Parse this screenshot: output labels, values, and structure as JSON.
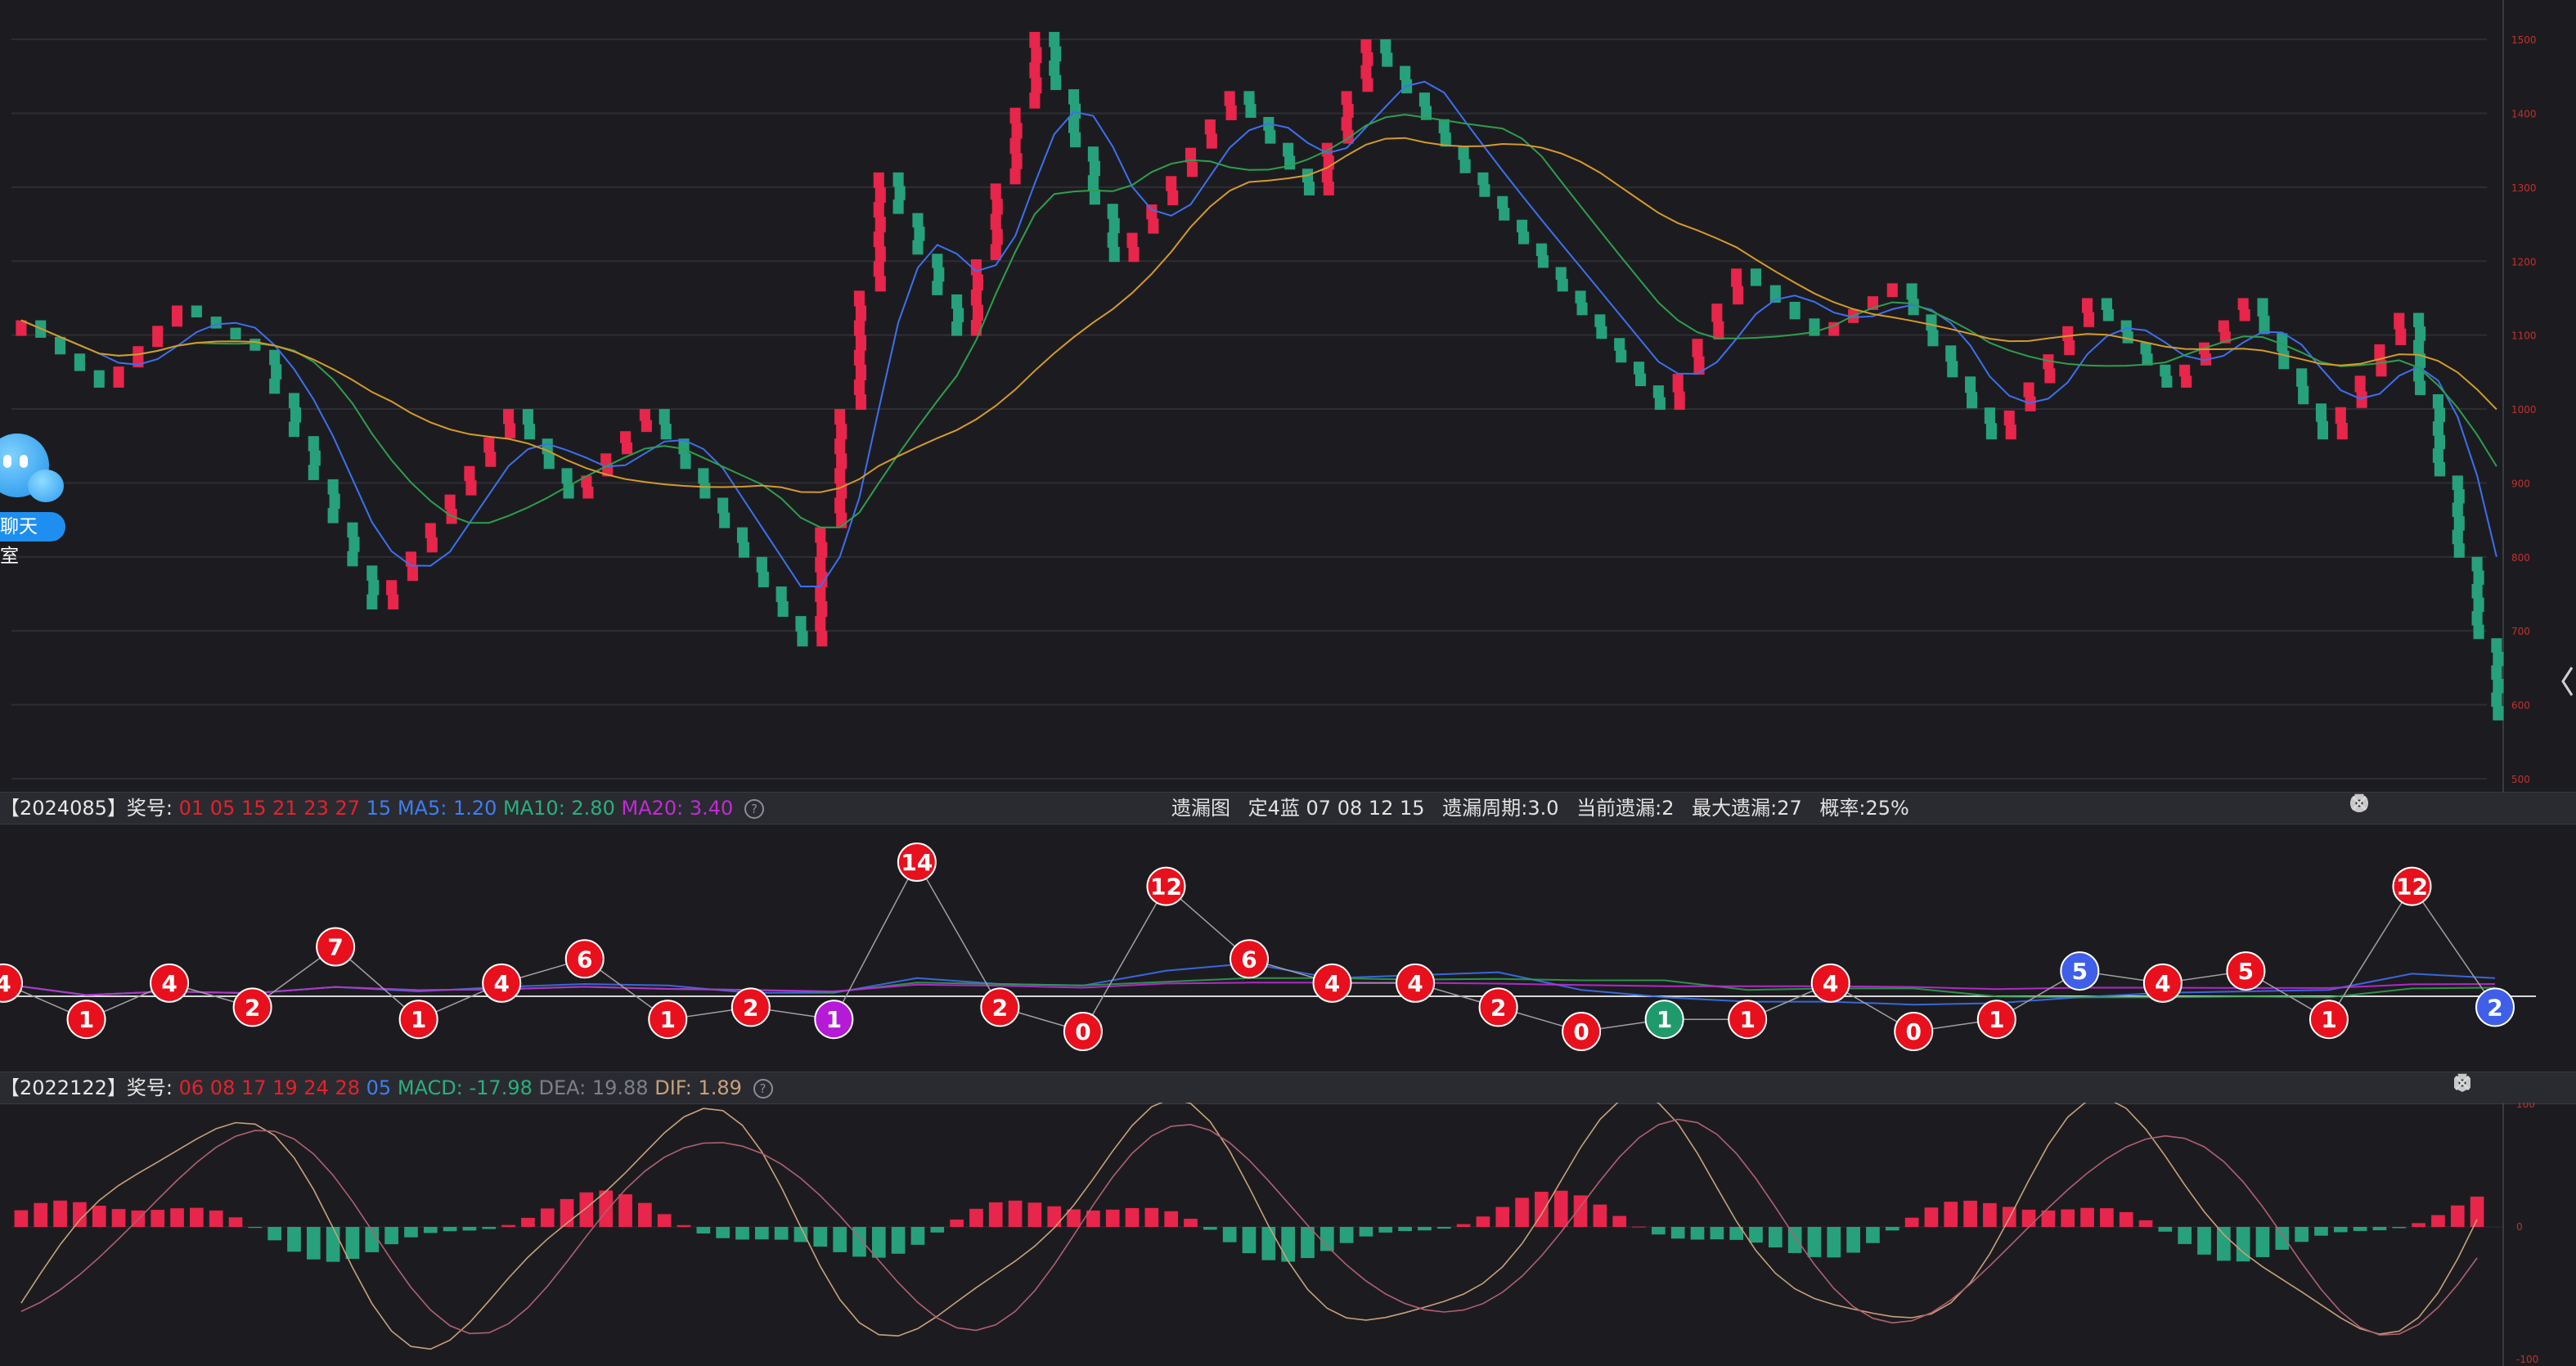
{
  "colors": {
    "up": "#e8254a",
    "down": "#26a17b",
    "ma5": "#3d6ff0",
    "ma10": "#2e9e4e",
    "ma20": "#d49a2a",
    "grid": "#2d2e34",
    "axis_text": "#c0302f"
  },
  "main_axis": {
    "labels": [
      "1500",
      "1400",
      "1300",
      "1200",
      "1100",
      "1000",
      "900",
      "800",
      "700",
      "600",
      "500"
    ]
  },
  "bar1": {
    "issue": "【2024085】奖号:",
    "reds": "01 05 15 21 23 27",
    "blue": "15",
    "ma5": "MA5: 1.20",
    "ma10": "MA10: 2.80",
    "ma20": "MA20: 3.40",
    "help": "?",
    "center": {
      "title": "遗漏图",
      "config": "定4蓝  07 08 12 15",
      "period": "遗漏周期:3.0",
      "current": "当前遗漏:2",
      "max": "最大遗漏:27",
      "prob": "概率:25%"
    }
  },
  "bar2": {
    "issue": "【2022122】奖号:",
    "reds": "06 08 17 19 24 28",
    "blue": "05",
    "macd": "MACD: -17.98",
    "dea": "DEA: 19.88",
    "dif": "DIF: 1.89",
    "help": "?"
  },
  "macd_axis": {
    "top": "100",
    "mid": "0",
    "bottom": "-100"
  },
  "chat": {
    "label": "聊天室"
  },
  "chart_data": [
    {
      "type": "renko",
      "title": "",
      "y_range": [
        500,
        1520
      ],
      "brick_size": 20,
      "x_count": 127,
      "series": [
        {
          "name": "MA5",
          "color": "#3d6ff0"
        },
        {
          "name": "MA10",
          "color": "#2e9e4e"
        },
        {
          "name": "MA20",
          "color": "#d49a2a"
        }
      ],
      "pivots": [
        [
          0,
          1120
        ],
        [
          4,
          1030
        ],
        [
          8,
          1140
        ],
        [
          12,
          1080
        ],
        [
          18,
          730
        ],
        [
          25,
          1000
        ],
        [
          28,
          880
        ],
        [
          32,
          1000
        ],
        [
          35,
          880
        ],
        [
          40,
          680
        ],
        [
          44,
          1320
        ],
        [
          48,
          1100
        ],
        [
          52,
          1510
        ],
        [
          56,
          1200
        ],
        [
          62,
          1430
        ],
        [
          66,
          1290
        ],
        [
          69,
          1500
        ],
        [
          74,
          1320
        ],
        [
          79,
          1160
        ],
        [
          84,
          1000
        ],
        [
          88,
          1190
        ],
        [
          92,
          1100
        ],
        [
          96,
          1170
        ],
        [
          101,
          960
        ],
        [
          106,
          1150
        ],
        [
          110,
          1030
        ],
        [
          114,
          1150
        ],
        [
          118,
          960
        ],
        [
          122,
          1130
        ],
        [
          127,
          580
        ]
      ]
    },
    {
      "type": "line",
      "title": "遗漏图",
      "y_range": [
        0,
        14
      ],
      "points": [
        {
          "v": 4,
          "c": "red"
        },
        {
          "v": 1,
          "c": "red"
        },
        {
          "v": 4,
          "c": "red"
        },
        {
          "v": 2,
          "c": "red"
        },
        {
          "v": 7,
          "c": "red"
        },
        {
          "v": 1,
          "c": "red"
        },
        {
          "v": 4,
          "c": "red"
        },
        {
          "v": 6,
          "c": "red"
        },
        {
          "v": 1,
          "c": "red"
        },
        {
          "v": 2,
          "c": "red"
        },
        {
          "v": 1,
          "c": "purple"
        },
        {
          "v": 14,
          "c": "red"
        },
        {
          "v": 2,
          "c": "red"
        },
        {
          "v": 0,
          "c": "red"
        },
        {
          "v": 12,
          "c": "red"
        },
        {
          "v": 6,
          "c": "red"
        },
        {
          "v": 4,
          "c": "red"
        },
        {
          "v": 4,
          "c": "red"
        },
        {
          "v": 2,
          "c": "red"
        },
        {
          "v": 0,
          "c": "red"
        },
        {
          "v": 1,
          "c": "green"
        },
        {
          "v": 1,
          "c": "red"
        },
        {
          "v": 4,
          "c": "red"
        },
        {
          "v": 0,
          "c": "red"
        },
        {
          "v": 1,
          "c": "red"
        },
        {
          "v": 5,
          "c": "blue"
        },
        {
          "v": 4,
          "c": "red"
        },
        {
          "v": 5,
          "c": "red"
        },
        {
          "v": 1,
          "c": "red"
        },
        {
          "v": 12,
          "c": "red"
        },
        {
          "v": 2,
          "c": "blue"
        }
      ],
      "series": [
        {
          "name": "MA5",
          "color": "#3d6ff0"
        },
        {
          "name": "MA10",
          "color": "#2e9e4e"
        },
        {
          "name": "MA20",
          "color": "#c22ad8"
        }
      ]
    },
    {
      "type": "bar",
      "title": "MACD",
      "y_range": [
        -100,
        100
      ],
      "bar_count": 127,
      "series": [
        {
          "name": "DIF",
          "color": "#c9a07a"
        },
        {
          "name": "DEA",
          "color": "#b06070"
        }
      ]
    }
  ]
}
